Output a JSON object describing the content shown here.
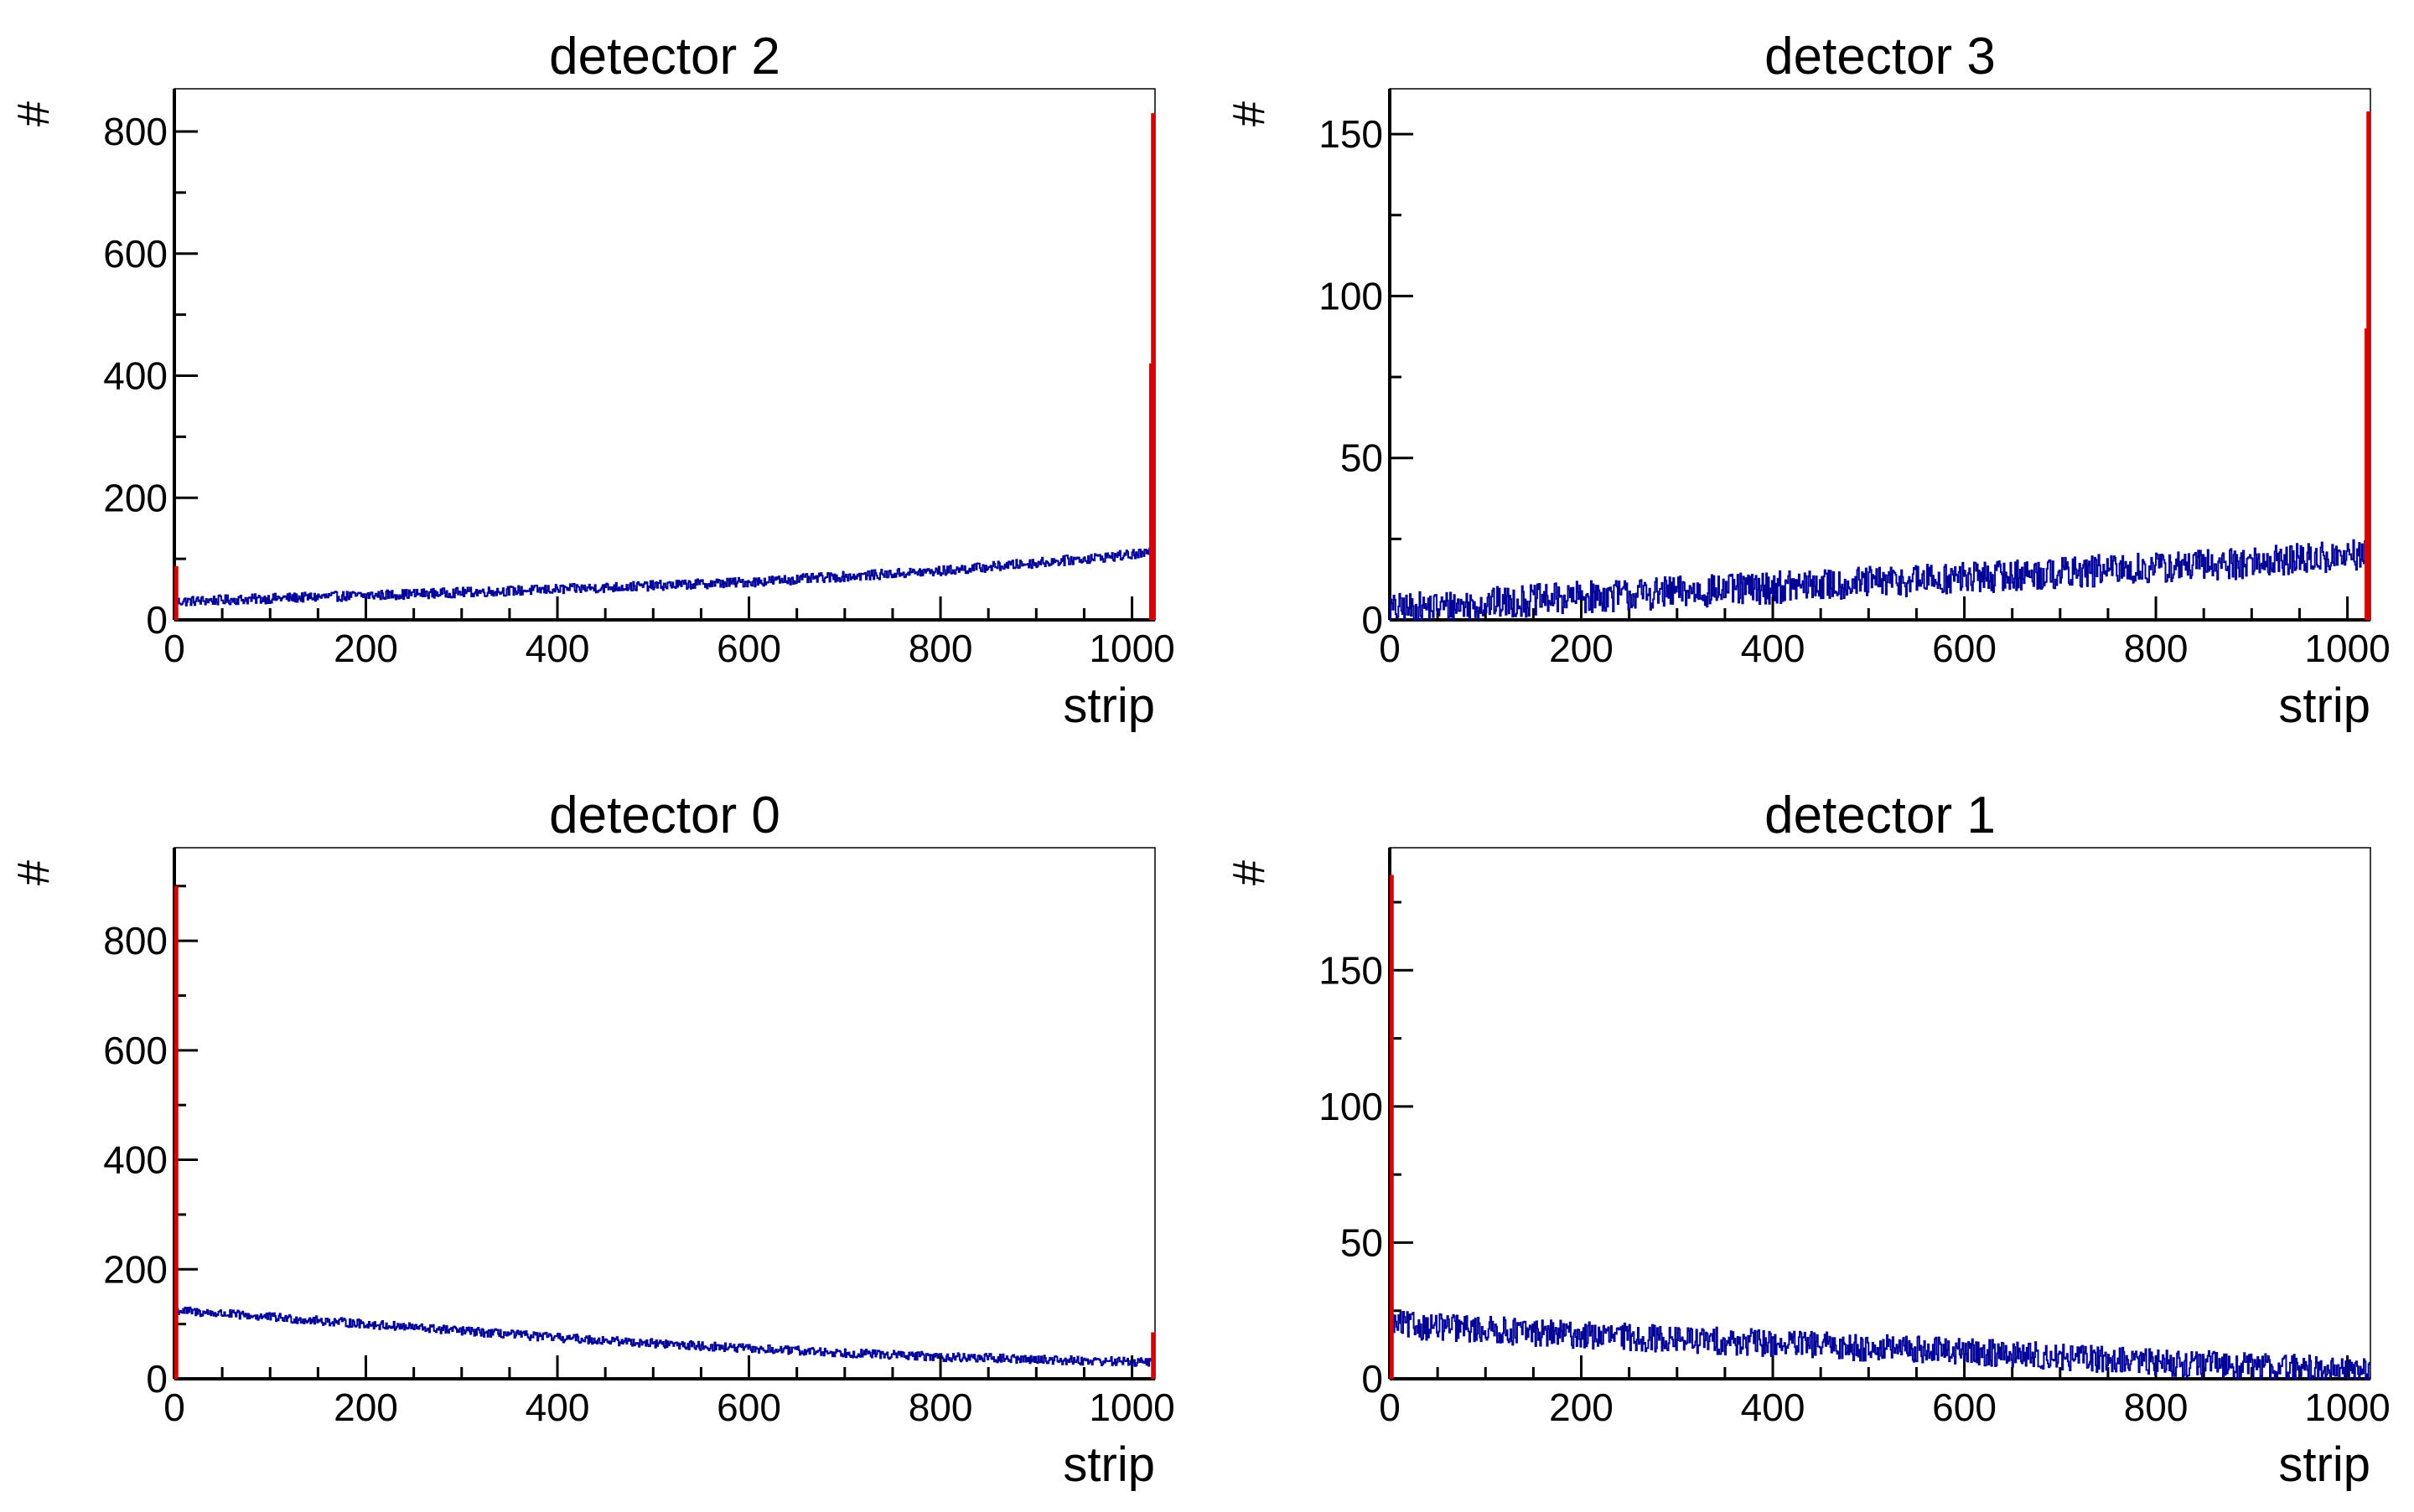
{
  "chart_data": [
    {
      "type": "line",
      "title": "detector 2",
      "xlabel": "strip",
      "ylabel": "#",
      "xlim": [
        0,
        1024
      ],
      "ylim": [
        0,
        870
      ],
      "x_ticks": [
        0,
        200,
        400,
        600,
        800,
        1000
      ],
      "y_ticks": [
        0,
        200,
        400,
        600,
        800
      ],
      "x_tick_labels": [
        "0",
        "200",
        "400",
        "600",
        "800",
        "1000"
      ],
      "y_tick_labels": [
        "0",
        "200",
        "400",
        "600",
        "800"
      ],
      "series": [
        {
          "color": "#000099",
          "trend": {
            "x": [
              0,
              200,
              400,
              600,
              800,
              1024
            ],
            "y": [
              30,
              40,
              50,
              62,
              80,
              110
            ]
          },
          "noise": 8
        },
        {
          "color": "#dd0000",
          "spikes": [
            {
              "x": 2,
              "y": 88
            },
            {
              "x": 1020,
              "y": 420
            },
            {
              "x": 1022,
              "y": 830
            }
          ]
        }
      ]
    },
    {
      "type": "line",
      "title": "detector 3",
      "xlabel": "strip",
      "ylabel": "#",
      "xlim": [
        0,
        1024
      ],
      "ylim": [
        0,
        164
      ],
      "x_ticks": [
        0,
        200,
        400,
        600,
        800,
        1000
      ],
      "y_ticks": [
        0,
        50,
        100,
        150
      ],
      "x_tick_labels": [
        "0",
        "200",
        "400",
        "600",
        "800",
        "1000"
      ],
      "y_tick_labels": [
        "0",
        "50",
        "100",
        "150"
      ],
      "series": [
        {
          "color": "#000099",
          "trend": {
            "x": [
              0,
              200,
              400,
              600,
              800,
              1024
            ],
            "y": [
              3,
              7,
              10,
              13,
              16,
              20
            ]
          },
          "noise": 5
        },
        {
          "color": "#dd0000",
          "spikes": [
            {
              "x": 1020,
              "y": 90
            },
            {
              "x": 1022,
              "y": 157
            }
          ]
        }
      ]
    },
    {
      "type": "line",
      "title": "detector 0",
      "xlabel": "strip",
      "ylabel": "#",
      "xlim": [
        0,
        1024
      ],
      "ylim": [
        0,
        970
      ],
      "x_ticks": [
        0,
        200,
        400,
        600,
        800,
        1000
      ],
      "y_ticks": [
        0,
        200,
        400,
        600,
        800
      ],
      "x_tick_labels": [
        "0",
        "200",
        "400",
        "600",
        "800",
        "1000"
      ],
      "y_tick_labels": [
        "0",
        "200",
        "400",
        "600",
        "800"
      ],
      "series": [
        {
          "color": "#000099",
          "trend": {
            "x": [
              0,
              200,
              400,
              600,
              800,
              1024
            ],
            "y": [
              125,
              100,
              75,
              55,
              40,
              30
            ]
          },
          "noise": 8
        },
        {
          "color": "#dd0000",
          "spikes": [
            {
              "x": 2,
              "y": 900
            },
            {
              "x": 1022,
              "y": 85
            }
          ]
        }
      ]
    },
    {
      "type": "line",
      "title": "detector 1",
      "xlabel": "strip",
      "ylabel": "#",
      "xlim": [
        0,
        1024
      ],
      "ylim": [
        0,
        195
      ],
      "x_ticks": [
        0,
        200,
        400,
        600,
        800,
        1000
      ],
      "y_ticks": [
        0,
        50,
        100,
        150
      ],
      "x_tick_labels": [
        "0",
        "200",
        "400",
        "600",
        "800",
        "1000"
      ],
      "y_tick_labels": [
        "0",
        "50",
        "100",
        "150"
      ],
      "series": [
        {
          "color": "#000099",
          "trend": {
            "x": [
              0,
              200,
              400,
              600,
              800,
              1024
            ],
            "y": [
              20,
              16,
              13,
              10,
              6,
              3
            ]
          },
          "noise": 5
        },
        {
          "color": "#dd0000",
          "spikes": [
            {
              "x": 2,
              "y": 185
            }
          ]
        }
      ]
    }
  ]
}
